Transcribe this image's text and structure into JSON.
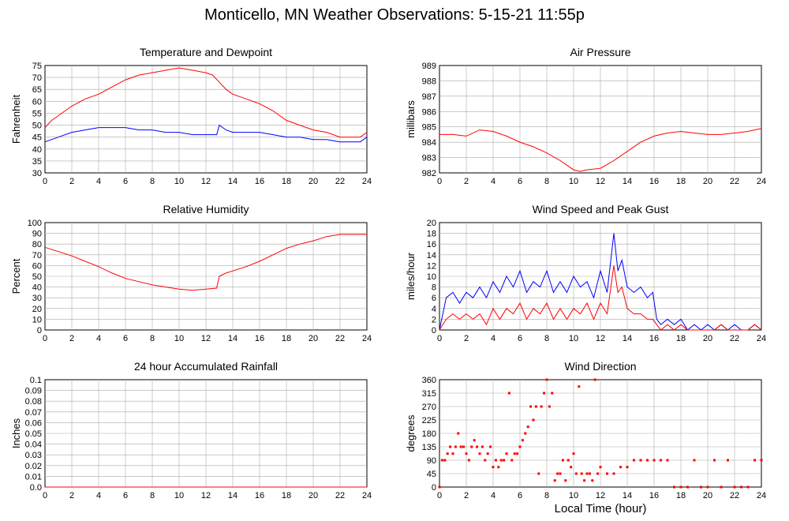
{
  "page": {
    "title": "Monticello, MN Weather Observations: 5-15-21 11:55p",
    "xlabel_shared": "Local Time (hour)"
  },
  "colors": {
    "red": "#ff0000",
    "blue": "#0000ff",
    "grid": "#aaaaaa",
    "axis": "#000000"
  },
  "chart_data": [
    {
      "id": "temp",
      "type": "line",
      "title": "Temperature and Dewpoint",
      "ylabel": "Fahrenheit",
      "xlim": [
        0,
        24
      ],
      "ylim": [
        30,
        75
      ],
      "xticks": [
        0,
        2,
        4,
        6,
        8,
        10,
        12,
        14,
        16,
        18,
        20,
        22,
        24
      ],
      "yticks": [
        30,
        35,
        40,
        45,
        50,
        55,
        60,
        65,
        70,
        75
      ],
      "ytick_labels": [
        "30",
        "35",
        "40",
        "45",
        "50",
        "55",
        "60",
        "65",
        "70",
        "75"
      ],
      "grid": true,
      "series": [
        {
          "color": "red",
          "x": [
            0,
            0.5,
            1,
            1.5,
            2,
            3,
            4,
            5,
            6,
            7,
            8,
            9,
            10,
            11,
            12,
            12.5,
            13,
            13.5,
            14,
            15,
            16,
            17,
            18,
            19,
            20,
            21,
            22,
            23,
            23.5,
            24
          ],
          "y": [
            49,
            52,
            54,
            56,
            58,
            61,
            63,
            66,
            69,
            71,
            72,
            73,
            74,
            73,
            72,
            71,
            68,
            65,
            63,
            61,
            59,
            56,
            52,
            50,
            48,
            47,
            45,
            45,
            45,
            47
          ]
        },
        {
          "color": "blue",
          "x": [
            0,
            1,
            2,
            3,
            4,
            5,
            6,
            7,
            8,
            9,
            10,
            11,
            12,
            12.8,
            13,
            13.5,
            14,
            15,
            16,
            17,
            18,
            19,
            20,
            21,
            22,
            23,
            23.5,
            24
          ],
          "y": [
            43,
            45,
            47,
            48,
            49,
            49,
            49,
            48,
            48,
            47,
            47,
            46,
            46,
            46,
            50,
            48,
            47,
            47,
            47,
            46,
            45,
            45,
            44,
            44,
            43,
            43,
            43,
            45
          ]
        }
      ]
    },
    {
      "id": "pressure",
      "type": "line",
      "title": "Air Pressure",
      "ylabel": "millibars",
      "xlim": [
        0,
        24
      ],
      "ylim": [
        982,
        989
      ],
      "xticks": [
        0,
        2,
        4,
        6,
        8,
        10,
        12,
        14,
        16,
        18,
        20,
        22,
        24
      ],
      "yticks": [
        982,
        983,
        984,
        985,
        986,
        987,
        988,
        989
      ],
      "ytick_labels": [
        "982",
        "983",
        "984",
        "985",
        "986",
        "987",
        "988",
        "989"
      ],
      "grid": true,
      "series": [
        {
          "color": "red",
          "x": [
            0,
            1,
            2,
            3,
            4,
            5,
            6,
            7,
            8,
            9,
            10,
            10.5,
            11,
            12,
            13,
            14,
            15,
            16,
            17,
            18,
            19,
            20,
            21,
            22,
            23,
            24
          ],
          "y": [
            984.5,
            984.5,
            984.4,
            984.8,
            984.7,
            984.4,
            984.0,
            983.7,
            983.3,
            982.8,
            982.2,
            982.1,
            982.2,
            982.3,
            982.8,
            983.4,
            984.0,
            984.4,
            984.6,
            984.7,
            984.6,
            984.5,
            984.5,
            984.6,
            984.7,
            984.9
          ]
        }
      ]
    },
    {
      "id": "humidity",
      "type": "line",
      "title": "Relative Humidity",
      "ylabel": "Percent",
      "xlim": [
        0,
        24
      ],
      "ylim": [
        0,
        100
      ],
      "xticks": [
        0,
        2,
        4,
        6,
        8,
        10,
        12,
        14,
        16,
        18,
        20,
        22,
        24
      ],
      "yticks": [
        0,
        10,
        20,
        30,
        40,
        50,
        60,
        70,
        80,
        90,
        100
      ],
      "ytick_labels": [
        "0",
        "10",
        "20",
        "30",
        "40",
        "50",
        "60",
        "70",
        "80",
        "90",
        "100"
      ],
      "grid": true,
      "series": [
        {
          "color": "red",
          "x": [
            0,
            1,
            2,
            3,
            4,
            5,
            6,
            7,
            8,
            9,
            10,
            11,
            12,
            12.8,
            13,
            13.5,
            14,
            15,
            16,
            17,
            18,
            19,
            20,
            21,
            22,
            23,
            24
          ],
          "y": [
            77,
            73,
            69,
            64,
            59,
            53,
            48,
            45,
            42,
            40,
            38,
            37,
            38,
            39,
            50,
            53,
            55,
            59,
            64,
            70,
            76,
            80,
            83,
            87,
            89,
            89,
            89
          ]
        }
      ]
    },
    {
      "id": "wind",
      "type": "line",
      "title": "Wind Speed and Peak Gust",
      "ylabel": "miles/hour",
      "xlim": [
        0,
        24
      ],
      "ylim": [
        0,
        20
      ],
      "xticks": [
        0,
        2,
        4,
        6,
        8,
        10,
        12,
        14,
        16,
        18,
        20,
        22,
        24
      ],
      "yticks": [
        0,
        2,
        4,
        6,
        8,
        10,
        12,
        14,
        16,
        18,
        20
      ],
      "ytick_labels": [
        "0",
        "2",
        "4",
        "6",
        "8",
        "10",
        "12",
        "14",
        "16",
        "18",
        "20"
      ],
      "grid": true,
      "series": [
        {
          "color": "blue",
          "x": [
            0,
            0.5,
            1,
            1.5,
            2,
            2.5,
            3,
            3.5,
            4,
            4.5,
            5,
            5.5,
            6,
            6.5,
            7,
            7.5,
            8,
            8.5,
            9,
            9.5,
            10,
            10.5,
            11,
            11.5,
            12,
            12.5,
            13,
            13.3,
            13.6,
            14,
            14.5,
            15,
            15.5,
            15.9,
            16.2,
            16.5,
            17,
            17.5,
            18,
            18.5,
            19,
            19.5,
            20,
            20.5,
            21,
            21.5,
            22,
            22.5,
            23,
            23.5,
            24
          ],
          "y": [
            0,
            6,
            7,
            5,
            7,
            6,
            8,
            6,
            9,
            7,
            10,
            8,
            11,
            7,
            9,
            8,
            11,
            7,
            9,
            7,
            10,
            8,
            9,
            6,
            11,
            7,
            18,
            11,
            13,
            8,
            7,
            8,
            6,
            7,
            2,
            1,
            2,
            1,
            2,
            0,
            1,
            0,
            1,
            0,
            1,
            0,
            1,
            0,
            0,
            1,
            0
          ]
        },
        {
          "color": "red",
          "x": [
            0,
            0.5,
            1,
            1.5,
            2,
            2.5,
            3,
            3.5,
            4,
            4.5,
            5,
            5.5,
            6,
            6.5,
            7,
            7.5,
            8,
            8.5,
            9,
            9.5,
            10,
            10.5,
            11,
            11.5,
            12,
            12.5,
            13,
            13.3,
            13.6,
            14,
            14.5,
            15,
            15.5,
            15.9,
            16.2,
            16.5,
            17,
            17.5,
            18,
            18.5,
            19,
            19.5,
            20,
            20.5,
            21,
            21.5,
            22,
            22.5,
            23,
            23.5,
            24
          ],
          "y": [
            0,
            2,
            3,
            2,
            3,
            2,
            3,
            1,
            4,
            2,
            4,
            3,
            5,
            2,
            4,
            3,
            5,
            2,
            4,
            2,
            4,
            3,
            5,
            2,
            5,
            3,
            12,
            7,
            8,
            4,
            3,
            3,
            2,
            2,
            1,
            0,
            1,
            0,
            1,
            0,
            0,
            0,
            0,
            0,
            1,
            0,
            0,
            0,
            0,
            1,
            0
          ]
        }
      ]
    },
    {
      "id": "rain",
      "type": "line",
      "title": "24 hour Accumulated Rainfall",
      "ylabel": "Inches",
      "xlim": [
        0,
        24
      ],
      "ylim": [
        0,
        0.1
      ],
      "xticks": [
        0,
        2,
        4,
        6,
        8,
        10,
        12,
        14,
        16,
        18,
        20,
        22,
        24
      ],
      "yticks": [
        0,
        0.01,
        0.02,
        0.03,
        0.04,
        0.05,
        0.06,
        0.07,
        0.08,
        0.09,
        0.1
      ],
      "ytick_labels": [
        "0.0",
        "0.01",
        "0.02",
        "0.03",
        "0.04",
        "0.05",
        "0.06",
        "0.07",
        "0.08",
        "0.09",
        "0.1"
      ],
      "grid": true,
      "series": [
        {
          "color": "red",
          "x": [
            0,
            24
          ],
          "y": [
            0,
            0
          ]
        }
      ]
    },
    {
      "id": "winddir",
      "type": "scatter",
      "title": "Wind Direction",
      "ylabel": "degrees",
      "xlim": [
        0,
        24
      ],
      "ylim": [
        0,
        360
      ],
      "xticks": [
        0,
        2,
        4,
        6,
        8,
        10,
        12,
        14,
        16,
        18,
        20,
        22,
        24
      ],
      "yticks": [
        0,
        45,
        90,
        135,
        180,
        225,
        270,
        315,
        360
      ],
      "ytick_labels": [
        "0",
        "45",
        "90",
        "135",
        "180",
        "225",
        "270",
        "315",
        "360"
      ],
      "grid": true,
      "series": [
        {
          "color": "red",
          "x": [
            0,
            0.2,
            0.4,
            0.6,
            0.8,
            1.0,
            1.2,
            1.4,
            1.6,
            1.8,
            2.0,
            2.2,
            2.4,
            2.6,
            2.8,
            3.0,
            3.2,
            3.4,
            3.6,
            3.8,
            4.0,
            4.2,
            4.4,
            4.6,
            4.8,
            5.0,
            5.2,
            5.4,
            5.6,
            5.8,
            6.0,
            6.2,
            6.4,
            6.6,
            6.8,
            7.0,
            7.2,
            7.4,
            7.6,
            7.8,
            8.0,
            8.2,
            8.4,
            8.6,
            8.8,
            9.0,
            9.2,
            9.4,
            9.6,
            9.8,
            10.0,
            10.2,
            10.4,
            10.6,
            10.8,
            11.0,
            11.2,
            11.4,
            11.6,
            11.8,
            12.0,
            12.5,
            13.0,
            13.5,
            14.0,
            14.5,
            15.0,
            15.5,
            16.0,
            16.5,
            17.0,
            17.5,
            18.0,
            18.5,
            19.0,
            19.5,
            20.0,
            20.5,
            21.0,
            21.5,
            22.0,
            22.5,
            23.0,
            23.5,
            24.0
          ],
          "y": [
            0,
            90,
            90,
            112,
            135,
            112,
            135,
            180,
            135,
            135,
            112,
            90,
            135,
            157,
            135,
            112,
            135,
            90,
            112,
            135,
            67,
            90,
            67,
            90,
            90,
            112,
            315,
            90,
            112,
            112,
            135,
            157,
            180,
            202,
            270,
            225,
            270,
            45,
            270,
            315,
            360,
            270,
            315,
            22,
            45,
            45,
            90,
            22,
            90,
            67,
            112,
            45,
            337,
            45,
            22,
            45,
            45,
            22,
            360,
            45,
            67,
            45,
            45,
            67,
            67,
            90,
            90,
            90,
            90,
            90,
            90,
            0,
            0,
            0,
            90,
            0,
            0,
            90,
            0,
            90,
            0,
            0,
            0,
            90,
            90
          ]
        }
      ]
    }
  ]
}
